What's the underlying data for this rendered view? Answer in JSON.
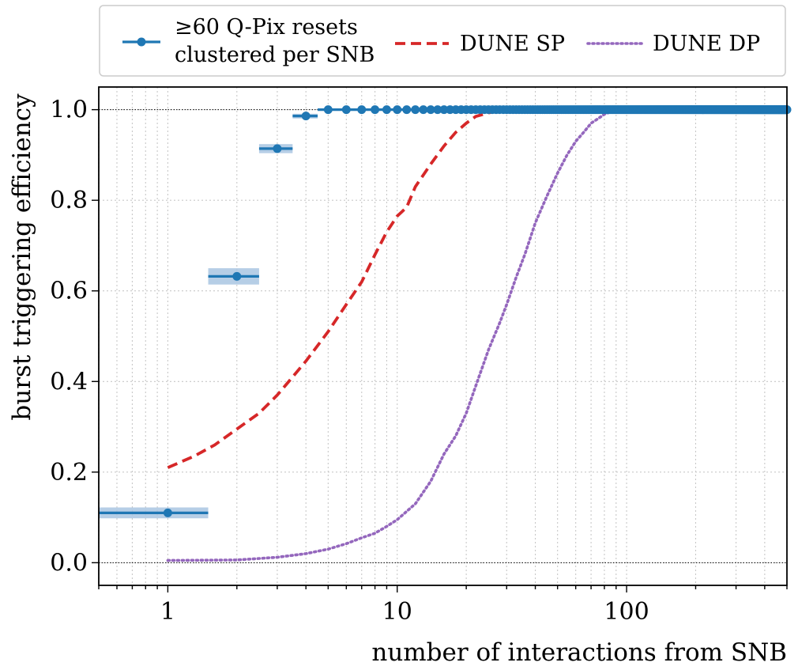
{
  "chart_data": {
    "type": "line",
    "xlabel": "number of interactions from SNB",
    "ylabel": "burst triggering efficiency",
    "xscale": "log",
    "xlim": [
      0.5,
      500
    ],
    "ylim": [
      -0.05,
      1.05
    ],
    "xticks": [
      1,
      10,
      100
    ],
    "xtick_labels": [
      "1",
      "10",
      "100"
    ],
    "yticks": [
      0.0,
      0.2,
      0.4,
      0.6,
      0.8,
      1.0
    ],
    "ytick_labels": [
      "0.0",
      "0.2",
      "0.4",
      "0.6",
      "0.8",
      "1.0"
    ],
    "grid": true,
    "reference_lines": [
      0.0,
      1.0
    ],
    "legend": {
      "placement": "top, outside plot",
      "entries": [
        {
          "label_line1": "≥60 Q-Pix resets",
          "label_line2": "clustered per SNB",
          "style": "points with horizontal error bars"
        },
        {
          "label": "DUNE SP",
          "style": "dashed"
        },
        {
          "label": "DUNE DP",
          "style": "dotted"
        }
      ]
    },
    "series": [
      {
        "name": "≥60 Q-Pix resets clustered per SNB",
        "color": "#1f77b4",
        "band_color": "#a9c6e2",
        "points": [
          {
            "x": 1,
            "y": 0.11,
            "xerr": [
              0.5,
              1.5
            ],
            "yerr": 0.012
          },
          {
            "x": 2,
            "y": 0.632,
            "xerr": [
              1.5,
              2.5
            ],
            "yerr": 0.018
          },
          {
            "x": 3,
            "y": 0.914,
            "xerr": [
              2.5,
              3.5
            ],
            "yerr": 0.01
          },
          {
            "x": 4,
            "y": 0.986,
            "xerr": [
              3.5,
              4.5
            ],
            "yerr": 0.005
          }
        ],
        "saturated_from": 5,
        "saturated_to": 500,
        "saturated_value": 1.0
      },
      {
        "name": "DUNE SP",
        "color": "#d62728",
        "x": [
          1,
          1.3,
          1.6,
          2,
          2.5,
          3,
          3.5,
          4,
          5,
          6,
          7,
          8,
          9,
          10,
          10.5,
          11,
          12,
          14,
          16,
          18,
          20,
          22,
          25,
          28,
          30
        ],
        "y": [
          0.21,
          0.235,
          0.26,
          0.295,
          0.33,
          0.37,
          0.41,
          0.445,
          0.51,
          0.57,
          0.62,
          0.68,
          0.73,
          0.765,
          0.775,
          0.785,
          0.83,
          0.88,
          0.92,
          0.95,
          0.97,
          0.985,
          0.993,
          0.998,
          1.0
        ]
      },
      {
        "name": "DUNE DP",
        "color": "#9467bd",
        "x": [
          1,
          2,
          3,
          4,
          5,
          6,
          7,
          8,
          9,
          10,
          12,
          14,
          16,
          18,
          20,
          22,
          25,
          28,
          30,
          33,
          36,
          40,
          45,
          50,
          55,
          60,
          65,
          70,
          75,
          80,
          85,
          90
        ],
        "y": [
          0.005,
          0.006,
          0.012,
          0.02,
          0.03,
          0.042,
          0.055,
          0.065,
          0.08,
          0.095,
          0.13,
          0.18,
          0.24,
          0.28,
          0.33,
          0.39,
          0.47,
          0.53,
          0.57,
          0.63,
          0.68,
          0.75,
          0.81,
          0.86,
          0.9,
          0.93,
          0.95,
          0.97,
          0.98,
          0.99,
          0.995,
          1.0
        ]
      }
    ]
  }
}
